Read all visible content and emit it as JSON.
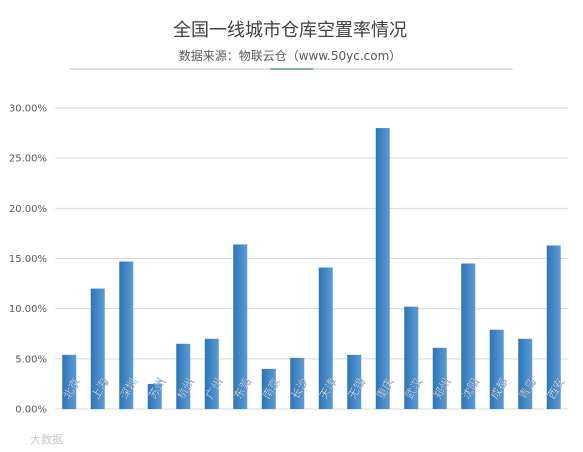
{
  "chart_data": {
    "type": "bar",
    "title": "全国一线城市仓库空置率情况",
    "subtitle": "数据来源：物联云仓（www.50yc.com）",
    "categories": [
      "北京",
      "上海",
      "深圳",
      "苏州",
      "杭州",
      "广州",
      "东莞",
      "南京",
      "长沙",
      "天津",
      "无锡",
      "重庆",
      "武汉",
      "郑州",
      "沈阳",
      "成都",
      "青岛",
      "西安"
    ],
    "values": [
      5.4,
      12.0,
      14.7,
      2.5,
      6.5,
      7.0,
      16.4,
      4.0,
      5.1,
      14.1,
      5.4,
      28.0,
      10.2,
      6.1,
      14.5,
      7.9,
      7.0,
      16.3
    ],
    "ylim": [
      0,
      30
    ],
    "yticks": [
      "0.00%",
      "5.00%",
      "10.00%",
      "15.00%",
      "20.00%",
      "25.00%",
      "30.00%"
    ],
    "grid": true,
    "bar_color": "#5b9bd5",
    "bar_color_dark": "#2e75b6",
    "grid_color": "#d9d9d9",
    "xlabel": "",
    "ylabel": ""
  },
  "watermark": "大数据",
  "colors": {
    "title": "#404040",
    "subtitle": "#595959",
    "divider": "#bfbfbf",
    "divider_accent": "#8fa8c8"
  }
}
